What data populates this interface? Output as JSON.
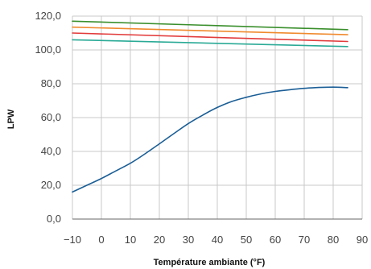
{
  "chart_data": {
    "type": "line",
    "title": "",
    "xlabel": "Température ambiante (°F)",
    "ylabel": "LPW",
    "xlim": [
      -10,
      90
    ],
    "ylim": [
      0,
      120
    ],
    "x_ticks": [
      -10,
      0,
      10,
      20,
      30,
      40,
      50,
      60,
      70,
      80,
      90
    ],
    "y_ticks": [
      "0,0",
      "20,0",
      "40,0",
      "60,0",
      "80,0",
      "100,0",
      "120,0"
    ],
    "y_tick_values": [
      0,
      20,
      40,
      60,
      80,
      100,
      120
    ],
    "grid": true,
    "legend": "none",
    "series": [
      {
        "color": "#3a8f2c",
        "x": [
          -10,
          85
        ],
        "y": [
          117,
          112
        ]
      },
      {
        "color": "#f08a2e",
        "x": [
          -10,
          85
        ],
        "y": [
          113.5,
          109
        ]
      },
      {
        "color": "#e23b3b",
        "x": [
          -10,
          85
        ],
        "y": [
          110,
          105
        ]
      },
      {
        "color": "#2aaa96",
        "x": [
          -10,
          85
        ],
        "y": [
          106,
          102
        ]
      },
      {
        "color": "#1a5e96",
        "x": [
          -10,
          -5,
          0,
          5,
          10,
          15,
          20,
          25,
          30,
          35,
          40,
          45,
          50,
          55,
          60,
          65,
          70,
          75,
          80,
          85
        ],
        "y": [
          16,
          20,
          24,
          28.5,
          33,
          38.5,
          44.5,
          50.5,
          56.5,
          61.5,
          66,
          69.5,
          72,
          74,
          75.5,
          76.5,
          77.3,
          77.8,
          78,
          77.7
        ]
      }
    ]
  }
}
